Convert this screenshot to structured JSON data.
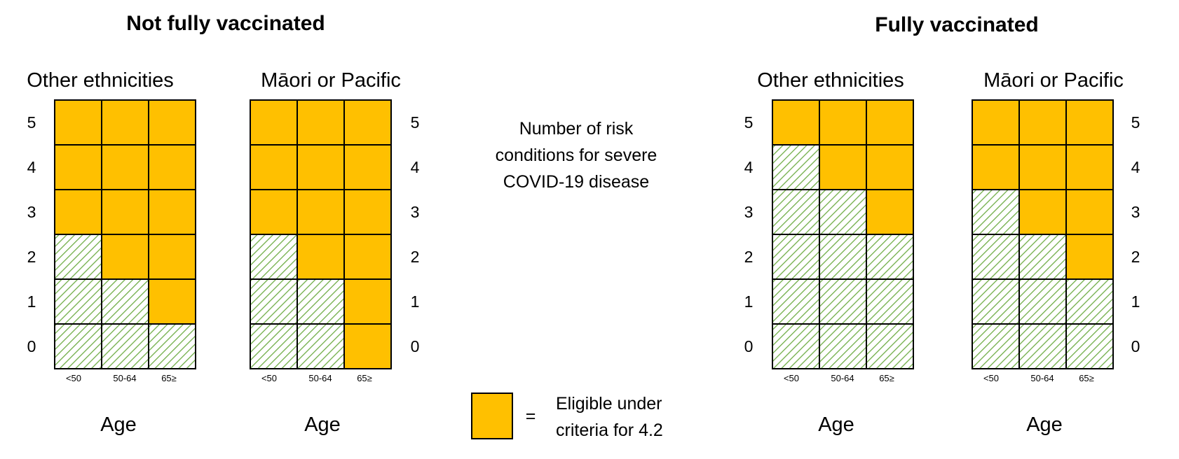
{
  "sections": {
    "not_fully": "Not fully vaccinated",
    "fully": "Fully vaccinated"
  },
  "y_axis_title": [
    "Number of risk",
    "conditions for severe",
    "COVID-19 disease"
  ],
  "legend": {
    "equals": "=",
    "text_lines": [
      "Eligible under",
      "criteria for 4.2"
    ]
  },
  "colors": {
    "eligible": "#FFC000",
    "not_eligible_hatch": "#70AD47",
    "grid": "#000000"
  },
  "rows": [
    "5",
    "4",
    "3",
    "2",
    "1",
    "0"
  ],
  "age_groups": [
    "<50",
    "50-64",
    "65≥"
  ],
  "age_title": "Age",
  "panels": [
    {
      "section": "Not fully vaccinated",
      "title": "Other ethnicities",
      "row_labels_side": "left",
      "eligible_min_conditions": [
        3,
        2,
        1
      ]
    },
    {
      "section": "Not fully vaccinated",
      "title": "Māori or Pacific",
      "row_labels_side": "right",
      "eligible_min_conditions": [
        3,
        2,
        0
      ]
    },
    {
      "section": "Fully vaccinated",
      "title": "Other ethnicities",
      "row_labels_side": "left",
      "eligible_min_conditions": [
        5,
        4,
        3
      ]
    },
    {
      "section": "Fully vaccinated",
      "title": "Māori or Pacific",
      "row_labels_side": "right",
      "eligible_min_conditions": [
        4,
        3,
        2
      ]
    }
  ]
}
